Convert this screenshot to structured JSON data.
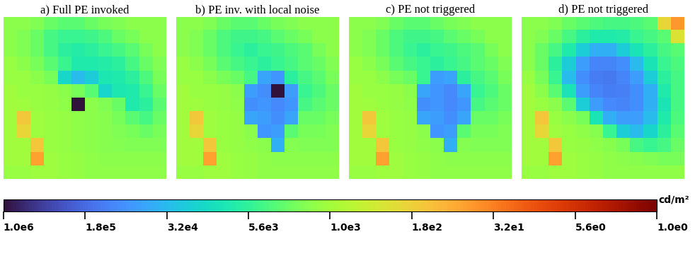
{
  "chart_data": [
    {
      "type": "heatmap",
      "title": "a) Full PE invoked",
      "tick_labels": false,
      "cells": [
        [
          1500,
          1500,
          1800,
          2500,
          3000,
          3000,
          2500,
          2000,
          1800,
          1500,
          1500,
          1500
        ],
        [
          1500,
          1800,
          2500,
          4000,
          5000,
          5000,
          4500,
          3500,
          2500,
          2000,
          1500,
          1500
        ],
        [
          1500,
          1800,
          2500,
          4000,
          6000,
          7000,
          6000,
          5000,
          4000,
          3000,
          2000,
          1500
        ],
        [
          1200,
          1500,
          2000,
          3000,
          5000,
          8000,
          8000,
          7000,
          6000,
          4000,
          2500,
          1800
        ],
        [
          1200,
          1200,
          1500,
          2000,
          15000,
          30000,
          20000,
          9000,
          8000,
          6000,
          3500,
          2000
        ],
        [
          1000,
          1200,
          1200,
          1300,
          1500,
          2000,
          3000,
          15000,
          9000,
          8000,
          5000,
          2500
        ],
        [
          1000,
          1100,
          1200,
          1300,
          1400,
          1000000,
          1500,
          1800,
          2500,
          8000,
          6000,
          3000
        ],
        [
          1000,
          150,
          1100,
          1200,
          1300,
          1400,
          1500,
          1600,
          2000,
          3000,
          4000,
          2500
        ],
        [
          1000,
          200,
          1100,
          1200,
          1300,
          1400,
          1500,
          1600,
          1800,
          2000,
          2500,
          2000
        ],
        [
          1000,
          1000,
          150,
          1200,
          1300,
          1400,
          1500,
          1600,
          1700,
          1800,
          1800,
          1800
        ],
        [
          1000,
          1000,
          60,
          1100,
          1200,
          1300,
          1400,
          1500,
          1500,
          1500,
          1500,
          1500
        ],
        [
          1200,
          1200,
          1100,
          1100,
          1200,
          1300,
          1400,
          1400,
          1400,
          1400,
          1400,
          1400
        ]
      ]
    },
    {
      "type": "heatmap",
      "title": "b) PE inv. with local noise",
      "tick_labels": false,
      "cells": [
        [
          1500,
          1500,
          1800,
          2500,
          3000,
          3000,
          2500,
          2000,
          1800,
          1500,
          1500,
          1500
        ],
        [
          1500,
          1800,
          2500,
          3500,
          4500,
          4500,
          4000,
          3000,
          2500,
          2000,
          1500,
          1500
        ],
        [
          1500,
          1800,
          2500,
          3500,
          5000,
          6000,
          5000,
          4500,
          3500,
          3000,
          2000,
          1500
        ],
        [
          1200,
          1500,
          2000,
          3000,
          4000,
          5000,
          6000,
          5000,
          4000,
          3000,
          2500,
          1800
        ],
        [
          1200,
          1200,
          1500,
          2000,
          2500,
          4000,
          50000,
          70000,
          6000,
          4000,
          3000,
          2000
        ],
        [
          1000,
          1200,
          1200,
          1300,
          1500,
          60000,
          80000,
          1000000,
          60000,
          5000,
          3500,
          2500
        ],
        [
          1000,
          1100,
          1200,
          1300,
          1400,
          80000,
          70000,
          90000,
          70000,
          4000,
          3000,
          2500
        ],
        [
          1000,
          150,
          1100,
          1200,
          1300,
          50000,
          60000,
          80000,
          50000,
          2500,
          2500,
          2000
        ],
        [
          1000,
          200,
          1100,
          1200,
          1300,
          1500,
          70000,
          60000,
          3000,
          2000,
          2000,
          1800
        ],
        [
          1000,
          1000,
          150,
          1200,
          1300,
          1400,
          1500,
          40000,
          1700,
          1800,
          1800,
          1800
        ],
        [
          1000,
          1000,
          60,
          1100,
          1200,
          1300,
          1400,
          1500,
          1500,
          1500,
          1500,
          1500
        ],
        [
          1200,
          1200,
          1100,
          1100,
          1200,
          1300,
          1400,
          1400,
          1400,
          1400,
          1400,
          1400
        ]
      ]
    },
    {
      "type": "heatmap",
      "title": "c) PE not triggered",
      "tick_labels": false,
      "cells": [
        [
          1500,
          1500,
          1800,
          2500,
          3000,
          3000,
          2500,
          2000,
          1800,
          1500,
          1500,
          1500
        ],
        [
          1500,
          1800,
          2500,
          3500,
          4500,
          4500,
          4000,
          3000,
          2500,
          2000,
          1500,
          1500
        ],
        [
          1500,
          1800,
          2500,
          3500,
          5000,
          6000,
          5000,
          4500,
          3500,
          3000,
          2000,
          1500
        ],
        [
          1200,
          1500,
          2000,
          3000,
          4000,
          5000,
          6000,
          5000,
          4000,
          3000,
          2500,
          1800
        ],
        [
          1200,
          1200,
          1500,
          2000,
          2500,
          5000,
          60000,
          50000,
          6000,
          4000,
          3000,
          2000
        ],
        [
          1000,
          1200,
          1200,
          1300,
          1500,
          50000,
          70000,
          90000,
          50000,
          5000,
          3500,
          2500
        ],
        [
          1000,
          1100,
          1200,
          1300,
          1400,
          80000,
          70000,
          90000,
          70000,
          4000,
          3000,
          2500
        ],
        [
          1000,
          150,
          1100,
          1200,
          1300,
          50000,
          60000,
          80000,
          50000,
          2500,
          2500,
          2000
        ],
        [
          1000,
          200,
          1100,
          1200,
          1300,
          1500,
          70000,
          60000,
          3000,
          2000,
          2000,
          1800
        ],
        [
          1000,
          1000,
          150,
          1200,
          1300,
          1400,
          1500,
          40000,
          1700,
          1800,
          1800,
          1800
        ],
        [
          1000,
          1000,
          60,
          1100,
          1200,
          1300,
          1400,
          1500,
          1500,
          1500,
          1500,
          1500
        ],
        [
          1200,
          1200,
          1100,
          1100,
          1200,
          1300,
          1400,
          1400,
          1400,
          1400,
          1400,
          1400
        ]
      ]
    },
    {
      "type": "heatmap",
      "title": "d) PE not triggered",
      "tick_labels": false,
      "cells": [
        [
          1500,
          1500,
          1800,
          2500,
          3000,
          3500,
          4000,
          4000,
          3500,
          3000,
          200,
          50
        ],
        [
          1500,
          1800,
          2500,
          4000,
          6000,
          8000,
          8000,
          7000,
          5000,
          4000,
          3000,
          300
        ],
        [
          1500,
          2500,
          4000,
          8000,
          20000,
          40000,
          40000,
          20000,
          10000,
          6000,
          4000,
          3000
        ],
        [
          1500,
          2500,
          6000,
          20000,
          60000,
          100000,
          100000,
          80000,
          30000,
          10000,
          5000,
          3500
        ],
        [
          1200,
          2000,
          5000,
          30000,
          80000,
          120000,
          130000,
          100000,
          60000,
          20000,
          6000,
          4000
        ],
        [
          1000,
          1500,
          3000,
          10000,
          60000,
          100000,
          120000,
          110000,
          80000,
          40000,
          8000,
          4000
        ],
        [
          1000,
          1200,
          1500,
          3000,
          20000,
          60000,
          90000,
          100000,
          80000,
          40000,
          10000,
          4000
        ],
        [
          1000,
          150,
          1200,
          1500,
          2000,
          10000,
          40000,
          60000,
          60000,
          30000,
          8000,
          3500
        ],
        [
          1000,
          200,
          1100,
          1200,
          1400,
          1600,
          5000,
          20000,
          30000,
          15000,
          6000,
          3000
        ],
        [
          1000,
          1000,
          150,
          1200,
          1300,
          1400,
          1600,
          2000,
          4000,
          5000,
          4000,
          2500
        ],
        [
          1000,
          1000,
          60,
          1100,
          1200,
          1300,
          1400,
          1500,
          1600,
          1800,
          2000,
          2000
        ],
        [
          1200,
          1200,
          1100,
          1100,
          1200,
          1300,
          1400,
          1400,
          1400,
          1400,
          1400,
          1400
        ]
      ]
    }
  ],
  "colorbar": {
    "label": "cd/m²",
    "log": true,
    "range": [
      1000000,
      1
    ],
    "ticks": [
      {
        "value": 1000000,
        "label": "1.0e6"
      },
      {
        "value": 177828,
        "label": "1.8e5"
      },
      {
        "value": 31623,
        "label": "3.2e4"
      },
      {
        "value": 5623,
        "label": "5.6e3"
      },
      {
        "value": 1000,
        "label": "1.0e3"
      },
      {
        "value": 178,
        "label": "1.8e2"
      },
      {
        "value": 31.6,
        "label": "3.2e1"
      },
      {
        "value": 5.62,
        "label": "5.6e0"
      },
      {
        "value": 1,
        "label": "1.0e0"
      }
    ]
  }
}
